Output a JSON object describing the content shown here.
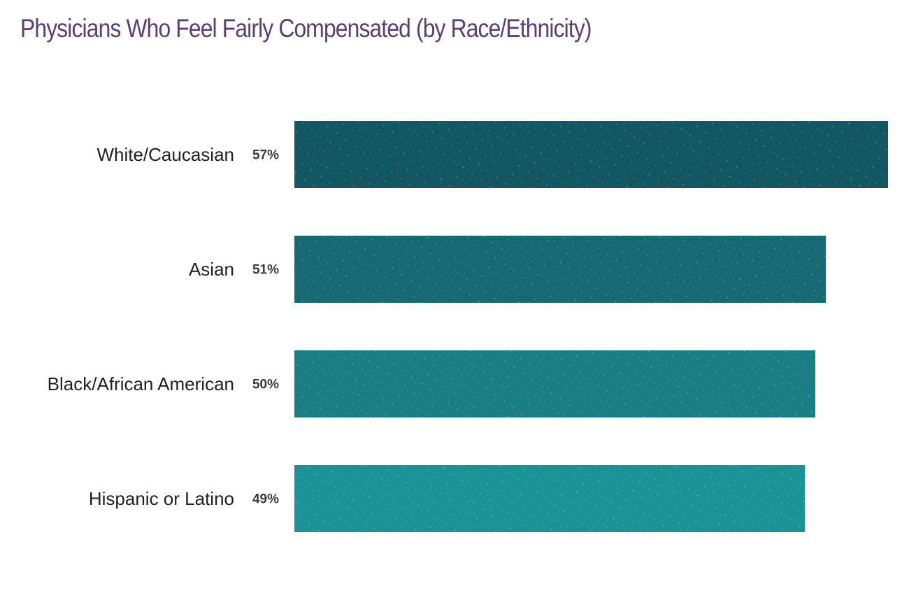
{
  "chart_data": {
    "type": "bar",
    "orientation": "horizontal",
    "title": "Physicians Who Feel Fairly Compensated (by Race/Ethnicity)",
    "xlabel": "",
    "ylabel": "",
    "categories": [
      "White/Caucasian",
      "Asian",
      "Black/African American",
      "Hispanic or Latino"
    ],
    "values": [
      57,
      51,
      50,
      49
    ],
    "value_labels": [
      "57%",
      "51%",
      "50%",
      "49%"
    ],
    "unit": "%",
    "grid": false,
    "legend": "none",
    "colors": {
      "title": "#5b3f72",
      "bars": [
        "#135763",
        "#176a74",
        "#1a7d84",
        "#1b9396"
      ],
      "pattern_dot": "#ffffff"
    }
  }
}
